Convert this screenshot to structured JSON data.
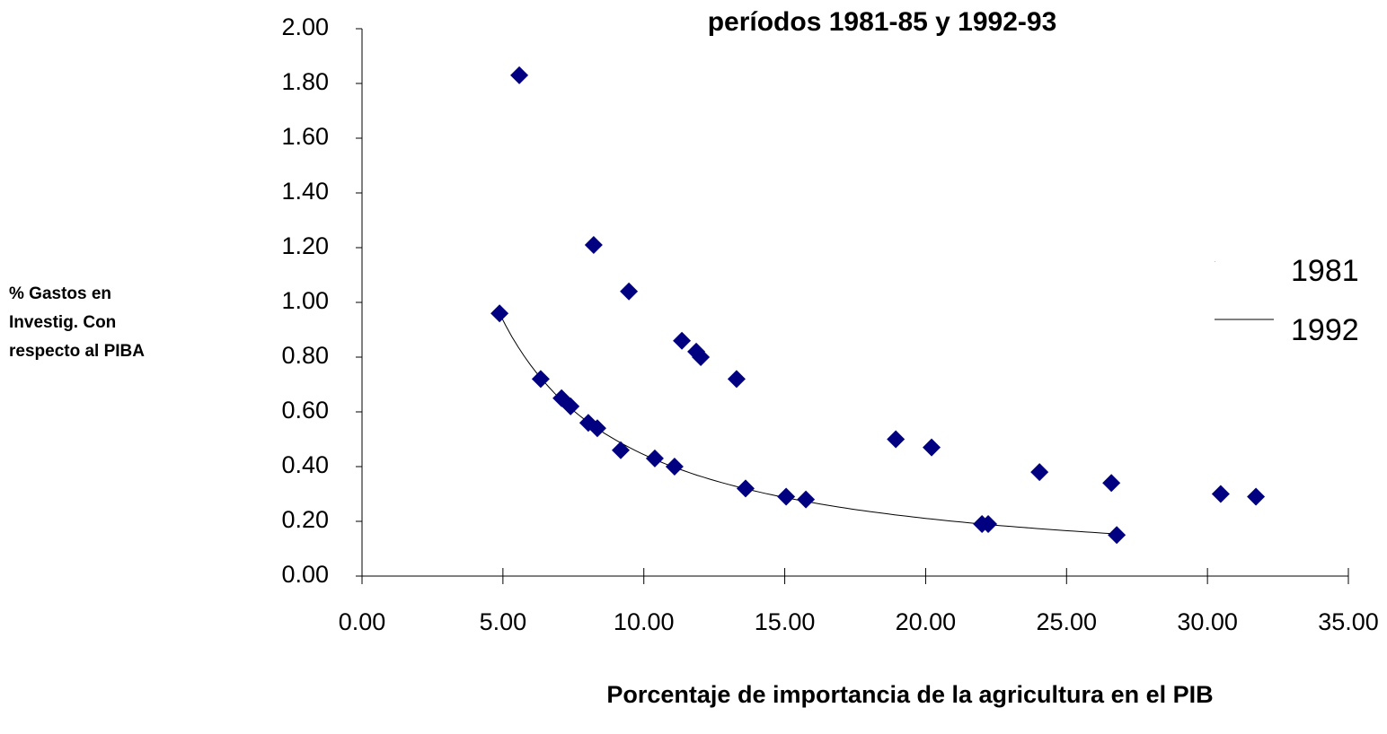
{
  "chart_data": {
    "type": "scatter",
    "title": "períodos 1981-85 y 1992-93",
    "x_label": "Porcentaje de importancia de la agricultura en el PIB",
    "y_label": [
      "% Gastos en",
      " Investig. Con",
      "respecto al  PIBA"
    ],
    "xlim": [
      0,
      35
    ],
    "ylim": [
      0,
      2
    ],
    "xticks": [
      {
        "value": 0,
        "label": "0.00"
      },
      {
        "value": 5,
        "label": "5.00"
      },
      {
        "value": 10,
        "label": "10.00"
      },
      {
        "value": 15,
        "label": "15.00"
      },
      {
        "value": 20,
        "label": "20.00"
      },
      {
        "value": 25,
        "label": "25.00"
      },
      {
        "value": 30,
        "label": "30.00"
      },
      {
        "value": 35,
        "label": "35.00"
      }
    ],
    "yticks": [
      {
        "value": 0,
        "label": "0.00"
      },
      {
        "value": 0.2,
        "label": "0.20"
      },
      {
        "value": 0.4,
        "label": "0.40"
      },
      {
        "value": 0.6,
        "label": "0.60"
      },
      {
        "value": 0.8,
        "label": "0.80"
      },
      {
        "value": 1,
        "label": "1.00"
      },
      {
        "value": 1.2,
        "label": "1.20"
      },
      {
        "value": 1.4,
        "label": "1.40"
      },
      {
        "value": 1.6,
        "label": "1.60"
      },
      {
        "value": 1.8,
        "label": "1.80"
      },
      {
        "value": 2,
        "label": "2.00"
      }
    ],
    "series": [
      {
        "name": "1981",
        "color": "#000080",
        "trendline": false,
        "x": [
          5.58,
          8.22,
          9.47,
          11.35,
          11.86,
          12.02,
          13.29,
          18.94,
          20.21,
          24.04,
          26.59,
          30.47,
          31.72
        ],
        "values": [
          1.83,
          1.21,
          1.04,
          0.86,
          0.82,
          0.8,
          0.72,
          0.5,
          0.47,
          0.38,
          0.34,
          0.3,
          0.29
        ]
      },
      {
        "name": "1992",
        "color": "#000080",
        "trendline": true,
        "x": [
          4.88,
          6.34,
          7.08,
          7.4,
          8.03,
          8.35,
          9.18,
          10.39,
          11.09,
          13.61,
          15.05,
          15.75,
          22.0,
          22.22,
          26.78
        ],
        "values": [
          0.96,
          0.72,
          0.65,
          0.62,
          0.56,
          0.54,
          0.46,
          0.43,
          0.4,
          0.32,
          0.29,
          0.28,
          0.19,
          0.19,
          0.15
        ]
      }
    ]
  }
}
